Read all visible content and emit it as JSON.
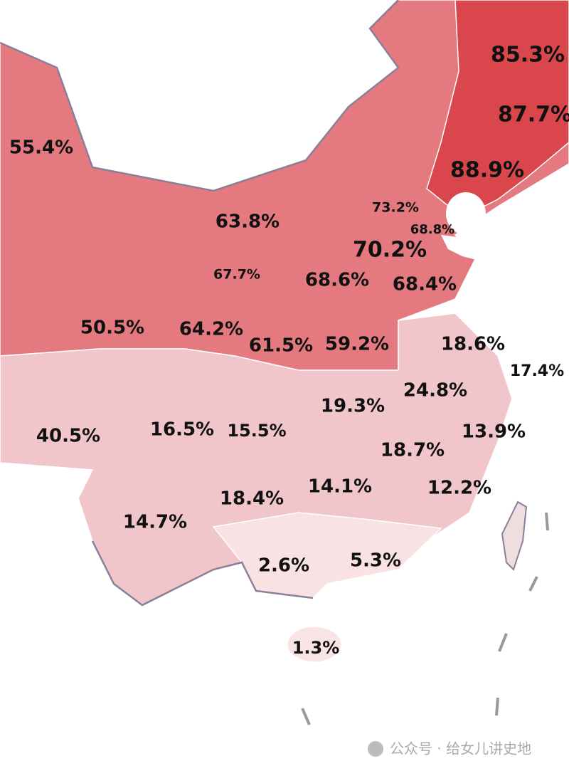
{
  "regions": [
    {
      "label": "85.3%"
    },
    {
      "label": "87.7%"
    },
    {
      "label": "88.9%"
    },
    {
      "label": "55.4%"
    },
    {
      "label": "73.2%"
    },
    {
      "label": "68.8%"
    },
    {
      "label": "63.8%"
    },
    {
      "label": "70.2%"
    },
    {
      "label": "67.7%"
    },
    {
      "label": "68.6%"
    },
    {
      "label": "68.4%"
    },
    {
      "label": "50.5%"
    },
    {
      "label": "64.2%"
    },
    {
      "label": "61.5%"
    },
    {
      "label": "59.2%"
    },
    {
      "label": "18.6%"
    },
    {
      "label": "17.4%"
    },
    {
      "label": "24.8%"
    },
    {
      "label": "19.3%"
    },
    {
      "label": "40.5%"
    },
    {
      "label": "16.5%"
    },
    {
      "label": "15.5%"
    },
    {
      "label": "13.9%"
    },
    {
      "label": "18.7%"
    },
    {
      "label": "12.2%"
    },
    {
      "label": "18.4%"
    },
    {
      "label": "14.1%"
    },
    {
      "label": "14.7%"
    },
    {
      "label": "2.6%"
    },
    {
      "label": "5.3%"
    },
    {
      "label": "1.3%"
    }
  ],
  "watermark": "公众号 · 给女儿讲史地"
}
